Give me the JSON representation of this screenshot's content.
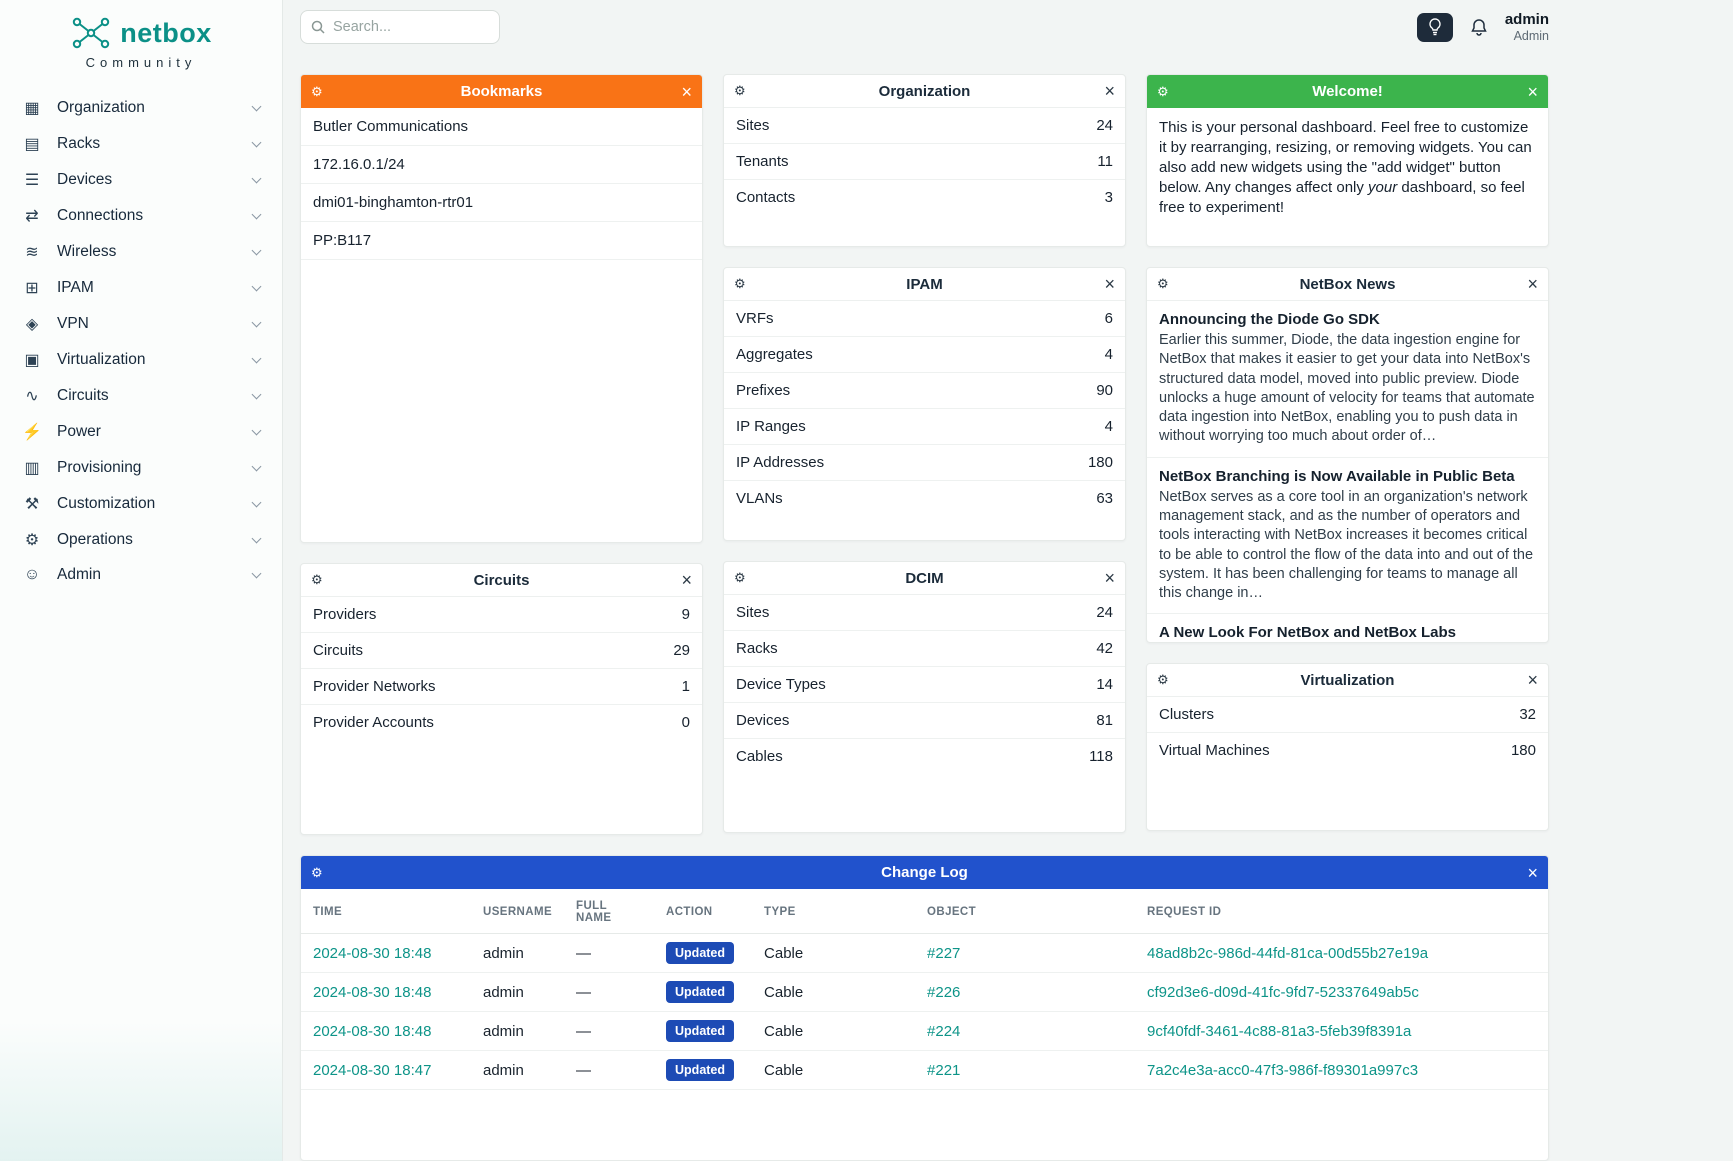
{
  "brand": {
    "name": "netbox",
    "subtitle": "Community"
  },
  "topbar": {
    "search_placeholder": "Search...",
    "user_name": "admin",
    "user_role": "Admin"
  },
  "icons": {
    "gear": "⚙",
    "close": "×"
  },
  "colors": {
    "accent_teal": "#0d9488",
    "bookmarks_orange": "#f97316",
    "welcome_green": "#3cb44c",
    "changelog_blue": "#2152cc",
    "badge_blue": "#1d4bb5"
  },
  "sidebar": {
    "items": [
      {
        "label": "Organization",
        "icon": "building"
      },
      {
        "label": "Racks",
        "icon": "rack"
      },
      {
        "label": "Devices",
        "icon": "server"
      },
      {
        "label": "Connections",
        "icon": "cable"
      },
      {
        "label": "Wireless",
        "icon": "wifi"
      },
      {
        "label": "IPAM",
        "icon": "ip-grid"
      },
      {
        "label": "VPN",
        "icon": "hexagon-network"
      },
      {
        "label": "Virtualization",
        "icon": "monitor"
      },
      {
        "label": "Circuits",
        "icon": "circuit"
      },
      {
        "label": "Power",
        "icon": "lightning"
      },
      {
        "label": "Provisioning",
        "icon": "document"
      },
      {
        "label": "Customization",
        "icon": "tools"
      },
      {
        "label": "Operations",
        "icon": "gears"
      },
      {
        "label": "Admin",
        "icon": "user"
      }
    ]
  },
  "widgets": {
    "bookmarks": {
      "title": "Bookmarks",
      "items": [
        "Butler Communications",
        "172.16.0.1/24",
        "dmi01-binghamton-rtr01",
        "PP:B117"
      ]
    },
    "organization": {
      "title": "Organization",
      "rows": [
        {
          "label": "Sites",
          "value": "24"
        },
        {
          "label": "Tenants",
          "value": "11"
        },
        {
          "label": "Contacts",
          "value": "3"
        }
      ]
    },
    "welcome": {
      "title": "Welcome!",
      "text_before": "This is your personal dashboard. Feel free to customize it by rearranging, resizing, or removing widgets. You can also add new widgets using the \"add widget\" button below. Any changes affect only ",
      "italic_word": "your",
      "text_after": " dashboard, so feel free to experiment!"
    },
    "ipam": {
      "title": "IPAM",
      "rows": [
        {
          "label": "VRFs",
          "value": "6"
        },
        {
          "label": "Aggregates",
          "value": "4"
        },
        {
          "label": "Prefixes",
          "value": "90"
        },
        {
          "label": "IP Ranges",
          "value": "4"
        },
        {
          "label": "IP Addresses",
          "value": "180"
        },
        {
          "label": "VLANs",
          "value": "63"
        }
      ]
    },
    "news": {
      "title": "NetBox News",
      "items": [
        {
          "title": "Announcing the Diode Go SDK",
          "excerpt": "Earlier this summer, Diode, the data ingestion engine for NetBox that makes it easier to get your data into NetBox's structured data model, moved into public preview. Diode unlocks a huge amount of velocity for teams that automate data ingestion into NetBox, enabling you to push data in without worrying too much about order of…"
        },
        {
          "title": "NetBox Branching is Now Available in Public Beta",
          "excerpt": "NetBox serves as a core tool in an organization's network management stack, and as the number of operators and tools interacting with NetBox increases it becomes critical to be able to control the flow of the data into and out of the system. It has been challenging for teams to manage all this change in…"
        },
        {
          "title": "A New Look For NetBox and NetBox Labs",
          "excerpt": ""
        }
      ]
    },
    "circuits": {
      "title": "Circuits",
      "rows": [
        {
          "label": "Providers",
          "value": "9"
        },
        {
          "label": "Circuits",
          "value": "29"
        },
        {
          "label": "Provider Networks",
          "value": "1"
        },
        {
          "label": "Provider Accounts",
          "value": "0"
        }
      ]
    },
    "dcim": {
      "title": "DCIM",
      "rows": [
        {
          "label": "Sites",
          "value": "24"
        },
        {
          "label": "Racks",
          "value": "42"
        },
        {
          "label": "Device Types",
          "value": "14"
        },
        {
          "label": "Devices",
          "value": "81"
        },
        {
          "label": "Cables",
          "value": "118"
        }
      ]
    },
    "virtualization": {
      "title": "Virtualization",
      "rows": [
        {
          "label": "Clusters",
          "value": "32"
        },
        {
          "label": "Virtual Machines",
          "value": "180"
        }
      ]
    },
    "changelog": {
      "title": "Change Log",
      "columns": [
        "Time",
        "Username",
        "Full Name",
        "Action",
        "Type",
        "Object",
        "Request ID"
      ],
      "rows": [
        {
          "time": "2024-08-30 18:48",
          "username": "admin",
          "full_name": "—",
          "action": "Updated",
          "type": "Cable",
          "object": "#227",
          "request_id": "48ad8b2c-986d-44fd-81ca-00d55b27e19a"
        },
        {
          "time": "2024-08-30 18:48",
          "username": "admin",
          "full_name": "—",
          "action": "Updated",
          "type": "Cable",
          "object": "#226",
          "request_id": "cf92d3e6-d09d-41fc-9fd7-52337649ab5c"
        },
        {
          "time": "2024-08-30 18:48",
          "username": "admin",
          "full_name": "—",
          "action": "Updated",
          "type": "Cable",
          "object": "#224",
          "request_id": "9cf40fdf-3461-4c88-81a3-5feb39f8391a"
        },
        {
          "time": "2024-08-30 18:47",
          "username": "admin",
          "full_name": "—",
          "action": "Updated",
          "type": "Cable",
          "object": "#221",
          "request_id": "7a2c4e3a-acc0-47f3-986f-f89301a997c3"
        }
      ]
    }
  }
}
